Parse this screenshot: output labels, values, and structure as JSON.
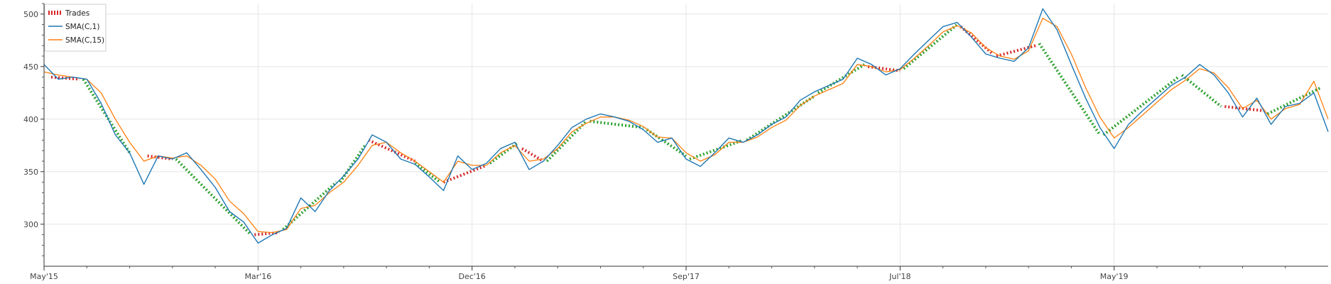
{
  "chart_data": {
    "type": "line",
    "title": "",
    "xlabel": "",
    "ylabel": "",
    "x_ticks": [
      "May'15",
      "Mar'16",
      "Dec'16",
      "Sep'17",
      "Jul'18",
      "May'19"
    ],
    "x_range": [
      0,
      360
    ],
    "ylim": [
      260,
      510
    ],
    "y_ticks": [
      300,
      350,
      400,
      450,
      500
    ],
    "grid": true,
    "legend_placement": "top-left",
    "legend": [
      {
        "label": "Trades",
        "color": "#d62728",
        "style": "dashed-thick"
      },
      {
        "label": "SMA(C,1)",
        "color": "#1f77b4",
        "style": "line"
      },
      {
        "label": "SMA(C,15)",
        "color": "#ff7f0e",
        "style": "line"
      }
    ],
    "series": [
      {
        "name": "SMA(C,1)",
        "color": "#1f77b4",
        "x": [
          0,
          4,
          8,
          12,
          16,
          20,
          24,
          28,
          32,
          36,
          40,
          44,
          48,
          52,
          56,
          60,
          64,
          68,
          72,
          76,
          80,
          84,
          88,
          92,
          96,
          100,
          104,
          108,
          112,
          116,
          120,
          124,
          128,
          132,
          136,
          140,
          144,
          148,
          152,
          156,
          160,
          164,
          168,
          172,
          176,
          180,
          184,
          188,
          192,
          196,
          200,
          204,
          208,
          212,
          216,
          220,
          224,
          228,
          232,
          236,
          240,
          244,
          248,
          252,
          256,
          260,
          264,
          268,
          272,
          276,
          280,
          284,
          288,
          292,
          296,
          300,
          304,
          308,
          312,
          316,
          320,
          324,
          328,
          332,
          336,
          340,
          344,
          348,
          352,
          356,
          360
        ],
        "y": [
          452,
          438,
          440,
          438,
          415,
          385,
          368,
          338,
          365,
          362,
          368,
          352,
          335,
          312,
          302,
          282,
          290,
          296,
          325,
          312,
          332,
          346,
          362,
          385,
          378,
          362,
          357,
          345,
          332,
          365,
          352,
          358,
          372,
          378,
          352,
          360,
          375,
          392,
          400,
          405,
          402,
          398,
          390,
          378,
          382,
          362,
          355,
          368,
          382,
          378,
          385,
          395,
          402,
          418,
          426,
          432,
          438,
          458,
          452,
          442,
          448,
          462,
          475,
          488,
          492,
          478,
          462,
          458,
          455,
          468,
          505,
          485,
          452,
          420,
          392,
          372,
          395,
          408,
          420,
          432,
          440,
          452,
          442,
          425,
          402,
          420,
          395,
          412,
          415,
          425,
          388
        ]
      },
      {
        "name": "SMA(C,15)",
        "color": "#ff7f0e",
        "x": [
          0,
          4,
          8,
          12,
          16,
          20,
          24,
          28,
          32,
          36,
          40,
          44,
          48,
          52,
          56,
          60,
          64,
          68,
          72,
          76,
          80,
          84,
          88,
          92,
          96,
          100,
          104,
          108,
          112,
          116,
          120,
          124,
          128,
          132,
          136,
          140,
          144,
          148,
          152,
          156,
          160,
          164,
          168,
          172,
          176,
          180,
          184,
          188,
          192,
          196,
          200,
          204,
          208,
          212,
          216,
          220,
          224,
          228,
          232,
          236,
          240,
          244,
          248,
          252,
          256,
          260,
          264,
          268,
          272,
          276,
          280,
          284,
          288,
          292,
          296,
          300,
          304,
          308,
          312,
          316,
          320,
          324,
          328,
          332,
          336,
          340,
          344,
          348,
          352,
          356,
          360
        ],
        "y": [
          445,
          442,
          440,
          438,
          425,
          400,
          378,
          360,
          365,
          363,
          365,
          356,
          343,
          322,
          310,
          293,
          292,
          295,
          315,
          318,
          330,
          340,
          356,
          375,
          378,
          368,
          360,
          350,
          340,
          360,
          356,
          356,
          368,
          375,
          360,
          362,
          372,
          388,
          396,
          402,
          402,
          399,
          393,
          383,
          382,
          368,
          360,
          366,
          378,
          378,
          383,
          392,
          399,
          413,
          422,
          428,
          434,
          452,
          450,
          445,
          447,
          458,
          470,
          483,
          489,
          482,
          468,
          460,
          457,
          465,
          496,
          488,
          462,
          430,
          402,
          382,
          392,
          404,
          416,
          428,
          437,
          448,
          444,
          430,
          410,
          418,
          400,
          410,
          414,
          436,
          400
        ]
      }
    ],
    "trades": [
      {
        "x0": 2,
        "y0": 440,
        "x1": 10,
        "y1": 438,
        "result": "loss"
      },
      {
        "x0": 11,
        "y0": 438,
        "x1": 24,
        "y1": 368,
        "result": "win"
      },
      {
        "x0": 29,
        "y0": 365,
        "x1": 36,
        "y1": 362,
        "result": "loss"
      },
      {
        "x0": 37,
        "y0": 362,
        "x1": 58,
        "y1": 290,
        "result": "win"
      },
      {
        "x0": 59,
        "y0": 290,
        "x1": 66,
        "y1": 292,
        "result": "loss"
      },
      {
        "x0": 67,
        "y0": 295,
        "x1": 82,
        "y1": 340,
        "result": "win"
      },
      {
        "x0": 83,
        "y0": 340,
        "x1": 90,
        "y1": 375,
        "result": "win"
      },
      {
        "x0": 91,
        "y0": 380,
        "x1": 104,
        "y1": 360,
        "result": "loss"
      },
      {
        "x0": 104,
        "y0": 358,
        "x1": 111,
        "y1": 340,
        "result": "win"
      },
      {
        "x0": 112,
        "y0": 340,
        "x1": 124,
        "y1": 356,
        "result": "loss"
      },
      {
        "x0": 125,
        "y0": 358,
        "x1": 133,
        "y1": 378,
        "result": "win"
      },
      {
        "x0": 134,
        "y0": 372,
        "x1": 140,
        "y1": 360,
        "result": "loss"
      },
      {
        "x0": 141,
        "y0": 360,
        "x1": 152,
        "y1": 398,
        "result": "win"
      },
      {
        "x0": 153,
        "y0": 398,
        "x1": 168,
        "y1": 392,
        "result": "win"
      },
      {
        "x0": 169,
        "y0": 390,
        "x1": 180,
        "y1": 365,
        "result": "win"
      },
      {
        "x0": 181,
        "y0": 362,
        "x1": 196,
        "y1": 380,
        "result": "win"
      },
      {
        "x0": 197,
        "y0": 380,
        "x1": 216,
        "y1": 422,
        "result": "win"
      },
      {
        "x0": 217,
        "y0": 425,
        "x1": 230,
        "y1": 452,
        "result": "win"
      },
      {
        "x0": 231,
        "y0": 450,
        "x1": 240,
        "y1": 446,
        "result": "loss"
      },
      {
        "x0": 241,
        "y0": 448,
        "x1": 256,
        "y1": 490,
        "result": "win"
      },
      {
        "x0": 257,
        "y0": 488,
        "x1": 266,
        "y1": 462,
        "result": "loss"
      },
      {
        "x0": 267,
        "y0": 460,
        "x1": 278,
        "y1": 470,
        "result": "loss"
      },
      {
        "x0": 279,
        "y0": 472,
        "x1": 296,
        "y1": 385,
        "result": "win"
      },
      {
        "x0": 297,
        "y0": 385,
        "x1": 318,
        "y1": 440,
        "result": "win"
      },
      {
        "x0": 319,
        "y0": 442,
        "x1": 330,
        "y1": 412,
        "result": "win"
      },
      {
        "x0": 331,
        "y0": 412,
        "x1": 342,
        "y1": 408,
        "result": "loss"
      },
      {
        "x0": 343,
        "y0": 405,
        "x1": 358,
        "y1": 430,
        "result": "win"
      }
    ]
  }
}
